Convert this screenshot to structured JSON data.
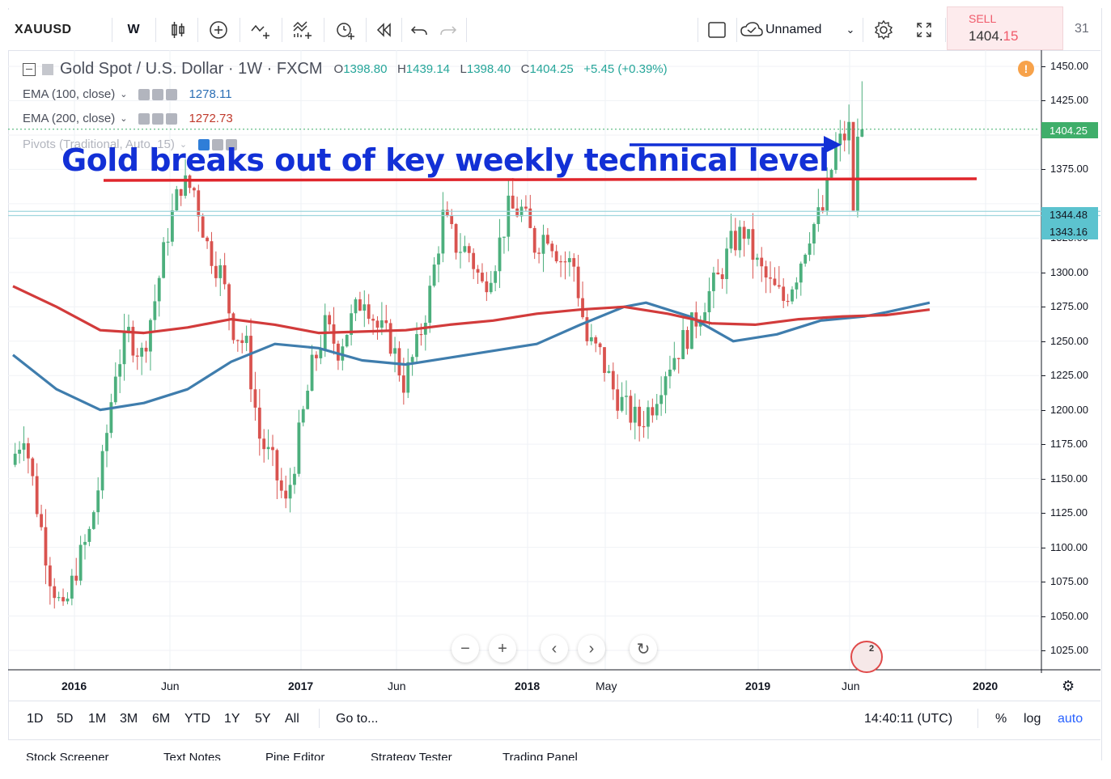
{
  "toolbar": {
    "symbol": "XAUUSD",
    "interval": "W",
    "layout_name": "Unnamed",
    "sell_label": "SELL",
    "sell_price_main": "1404.",
    "sell_price_tail": "15",
    "day_number": "31"
  },
  "legend": {
    "title": "Gold Spot / U.S. Dollar · 1W · FXCM",
    "open_label": "O",
    "open": "1398.80",
    "high_label": "H",
    "high": "1439.14",
    "low_label": "L",
    "low": "1398.40",
    "close_label": "C",
    "close": "1404.25",
    "change": "+5.45 (+0.39%)",
    "ema100_label": "EMA (100, close)",
    "ema100_value": "1278.11",
    "ema200_label": "EMA (200, close)",
    "ema200_value": "1272.73",
    "pivots_label": "Pivots (Traditional, Auto, 15)"
  },
  "annotation": {
    "headline": "Gold breaks out of key weekly technical level"
  },
  "price_axis": {
    "labels": [
      "1450.00",
      "1425.00",
      "1375.00",
      "1325.00",
      "1300.00",
      "1275.00",
      "1250.00",
      "1225.00",
      "1200.00",
      "1175.00",
      "1150.00",
      "1125.00",
      "1100.00",
      "1075.00",
      "1050.00",
      "1025.00"
    ],
    "current_price_tag": "1404.25",
    "level_tag_1": "1344.48",
    "level_tag_2": "1343.16"
  },
  "time_axis": {
    "labels": [
      "2016",
      "Jun",
      "2017",
      "Jun",
      "2018",
      "May",
      "2019",
      "Jun",
      "2020"
    ]
  },
  "range_bar": {
    "ranges": [
      "1D",
      "5D",
      "1M",
      "3M",
      "6M",
      "YTD",
      "1Y",
      "5Y",
      "All"
    ],
    "goto": "Go to...",
    "clock": "14:40:11 (UTC)",
    "percent": "%",
    "log": "log",
    "auto": "auto"
  },
  "bottom_tabs": [
    "Stock Screener",
    "Text Notes",
    "Pine Editor",
    "Strategy Tester",
    "Trading Panel"
  ],
  "colors": {
    "up": "#4caf7d",
    "down": "#d9534f",
    "ema100": "#3f7dad",
    "ema200": "#d23b3b",
    "accent_blue": "#1230d6",
    "price_tag_green": "#3fae6a",
    "level_tag_cyan": "#5cc3cf"
  },
  "chart_data": {
    "type": "candlestick",
    "title": "Gold Spot / U.S. Dollar · 1W · FXCM",
    "price_range": [
      1025,
      1450
    ],
    "key_level": 1367,
    "series": [
      {
        "name": "EMA (100, close)",
        "color": "#3f7dad",
        "values": [
          [
            0,
            1240
          ],
          [
            10,
            1215
          ],
          [
            20,
            1200
          ],
          [
            30,
            1205
          ],
          [
            40,
            1215
          ],
          [
            50,
            1235
          ],
          [
            60,
            1248
          ],
          [
            70,
            1245
          ],
          [
            80,
            1236
          ],
          [
            90,
            1233
          ],
          [
            100,
            1238
          ],
          [
            110,
            1243
          ],
          [
            120,
            1248
          ],
          [
            130,
            1262
          ],
          [
            140,
            1275
          ],
          [
            145,
            1278
          ],
          [
            155,
            1268
          ],
          [
            165,
            1250
          ],
          [
            175,
            1255
          ],
          [
            185,
            1265
          ],
          [
            195,
            1268
          ],
          [
            200,
            1271
          ],
          [
            210,
            1278
          ]
        ]
      },
      {
        "name": "EMA (200, close)",
        "color": "#d23b3b",
        "values": [
          [
            0,
            1290
          ],
          [
            10,
            1275
          ],
          [
            20,
            1258
          ],
          [
            30,
            1256
          ],
          [
            40,
            1260
          ],
          [
            50,
            1266
          ],
          [
            60,
            1262
          ],
          [
            70,
            1256
          ],
          [
            80,
            1257
          ],
          [
            90,
            1258
          ],
          [
            100,
            1262
          ],
          [
            110,
            1265
          ],
          [
            120,
            1270
          ],
          [
            130,
            1273
          ],
          [
            140,
            1275
          ],
          [
            150,
            1270
          ],
          [
            160,
            1263
          ],
          [
            170,
            1262
          ],
          [
            180,
            1266
          ],
          [
            190,
            1268
          ],
          [
            200,
            1269
          ],
          [
            210,
            1273
          ]
        ]
      }
    ],
    "candles_close_path": [
      1160,
      1185,
      1130,
      1080,
      1050,
      1085,
      1110,
      1160,
      1230,
      1255,
      1240,
      1280,
      1330,
      1365,
      1360,
      1320,
      1300,
      1260,
      1245,
      1180,
      1160,
      1130,
      1180,
      1230,
      1260,
      1245,
      1265,
      1285,
      1260,
      1250,
      1220,
      1245,
      1285,
      1340,
      1320,
      1315,
      1290,
      1310,
      1345,
      1345,
      1320,
      1330,
      1310,
      1305,
      1250,
      1240,
      1215,
      1200,
      1190,
      1205,
      1230,
      1245,
      1260,
      1280,
      1295,
      1320,
      1330,
      1305,
      1290,
      1280,
      1300,
      1330,
      1345,
      1390,
      1404
    ]
  }
}
